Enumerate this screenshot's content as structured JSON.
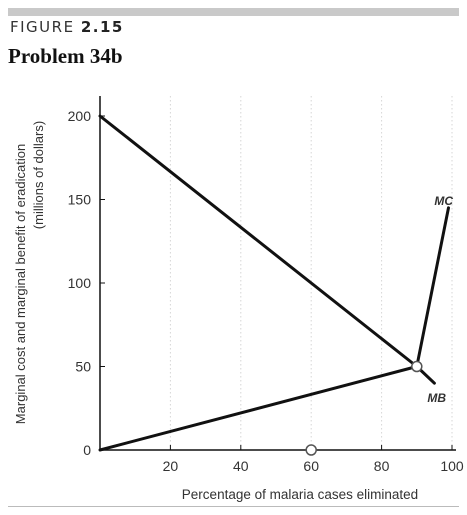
{
  "header": {
    "figure_word": "FIGURE",
    "figure_number": "2.15",
    "problem_title": "Problem 34b"
  },
  "colors": {
    "rule": "#c9c9c9",
    "curve": "#111111",
    "grid": "#d6d6d6",
    "text": "#333333"
  },
  "chart_data": {
    "type": "line",
    "title": "",
    "xlabel": "Percentage of malaria cases eliminated",
    "ylabel_line1": "Marginal cost and marginal benefit of eradication",
    "ylabel_line2": "(millions of dollars)",
    "xlim": [
      0,
      100
    ],
    "ylim": [
      0,
      210
    ],
    "x_ticks": [
      20,
      40,
      60,
      80,
      100
    ],
    "y_ticks": [
      0,
      50,
      100,
      150,
      200
    ],
    "grid": "vertical dotted lines at x ticks",
    "legend": "curve labels next to curves",
    "series": [
      {
        "name": "MB",
        "x": [
          0,
          90,
          95
        ],
        "y": [
          200,
          50,
          40
        ]
      },
      {
        "name": "MC",
        "x": [
          0,
          90,
          99
        ],
        "y": [
          0,
          50,
          145
        ]
      }
    ],
    "markers": [
      {
        "x": 90,
        "y": 50
      },
      {
        "x": 60,
        "y": 0
      }
    ]
  }
}
